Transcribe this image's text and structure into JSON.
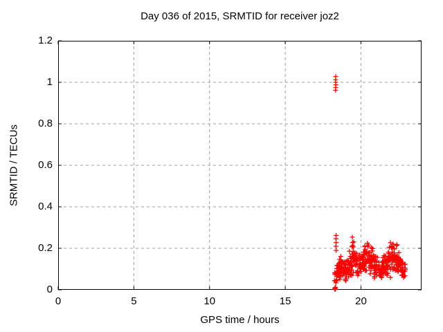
{
  "chart_data": {
    "type": "scatter",
    "title": "Day 036 of 2015, SRMTID for receiver joz2",
    "xlabel": "GPS time / hours",
    "ylabel": "SRMTID / TECUs",
    "xlim": [
      0,
      24
    ],
    "ylim": [
      0,
      1.2
    ],
    "xticks": [
      0,
      5,
      10,
      15,
      20
    ],
    "xtick_labels": [
      "0",
      "5",
      "10",
      "15",
      "20"
    ],
    "yticks": [
      0,
      0.2,
      0.4,
      0.6,
      0.8,
      1,
      1.2
    ],
    "ytick_labels": [
      "0",
      "0.2",
      "0.4",
      "0.6",
      "0.8",
      "1",
      "1.2"
    ],
    "grid": true,
    "legend": false,
    "marker": "plus",
    "marker_size": 7,
    "color": "#ff0000",
    "grid_color": "#9c9c9c",
    "border_color": "#000000",
    "background": "#ffffff",
    "seed": 3,
    "points": [
      [
        18.32,
        0.962
      ],
      [
        18.33,
        0.975
      ],
      [
        18.34,
        0.988
      ],
      [
        18.33,
        1.0
      ],
      [
        18.32,
        1.012
      ],
      [
        18.33,
        1.028
      ],
      [
        18.27,
        0.004
      ],
      [
        18.29,
        0.01
      ],
      [
        18.31,
        0.002
      ],
      [
        18.3,
        0.008
      ],
      [
        18.32,
        0.012
      ],
      [
        18.28,
        0.006
      ],
      [
        18.36,
        0.19
      ],
      [
        18.35,
        0.21
      ],
      [
        18.36,
        0.228
      ],
      [
        18.35,
        0.246
      ],
      [
        18.36,
        0.262
      ]
    ],
    "dense_clusters": [
      {
        "x0": 18.25,
        "x1": 18.42,
        "y0": 0.02,
        "y1": 0.12,
        "n": 14
      },
      {
        "x0": 18.38,
        "x1": 18.6,
        "y0": 0.03,
        "y1": 0.14,
        "n": 22
      },
      {
        "x0": 18.55,
        "x1": 18.85,
        "y0": 0.04,
        "y1": 0.17,
        "n": 30
      },
      {
        "x0": 18.85,
        "x1": 19.15,
        "y0": 0.03,
        "y1": 0.15,
        "n": 32
      },
      {
        "x0": 19.1,
        "x1": 19.4,
        "y0": 0.05,
        "y1": 0.19,
        "n": 26
      },
      {
        "x0": 19.38,
        "x1": 19.65,
        "y0": 0.06,
        "y1": 0.27,
        "n": 30
      },
      {
        "x0": 19.62,
        "x1": 19.95,
        "y0": 0.05,
        "y1": 0.2,
        "n": 26
      },
      {
        "x0": 19.95,
        "x1": 20.2,
        "y0": 0.06,
        "y1": 0.19,
        "n": 24
      },
      {
        "x0": 20.18,
        "x1": 20.55,
        "y0": 0.07,
        "y1": 0.24,
        "n": 34
      },
      {
        "x0": 20.55,
        "x1": 20.85,
        "y0": 0.06,
        "y1": 0.22,
        "n": 28
      },
      {
        "x0": 20.85,
        "x1": 21.15,
        "y0": 0.05,
        "y1": 0.18,
        "n": 26
      },
      {
        "x0": 21.15,
        "x1": 21.45,
        "y0": 0.04,
        "y1": 0.15,
        "n": 28
      },
      {
        "x0": 21.45,
        "x1": 21.75,
        "y0": 0.06,
        "y1": 0.18,
        "n": 28
      },
      {
        "x0": 21.75,
        "x1": 22.1,
        "y0": 0.05,
        "y1": 0.25,
        "n": 32
      },
      {
        "x0": 22.1,
        "x1": 22.45,
        "y0": 0.06,
        "y1": 0.24,
        "n": 34
      },
      {
        "x0": 22.45,
        "x1": 22.75,
        "y0": 0.05,
        "y1": 0.18,
        "n": 30
      },
      {
        "x0": 22.75,
        "x1": 22.95,
        "y0": 0.04,
        "y1": 0.13,
        "n": 16
      }
    ]
  }
}
